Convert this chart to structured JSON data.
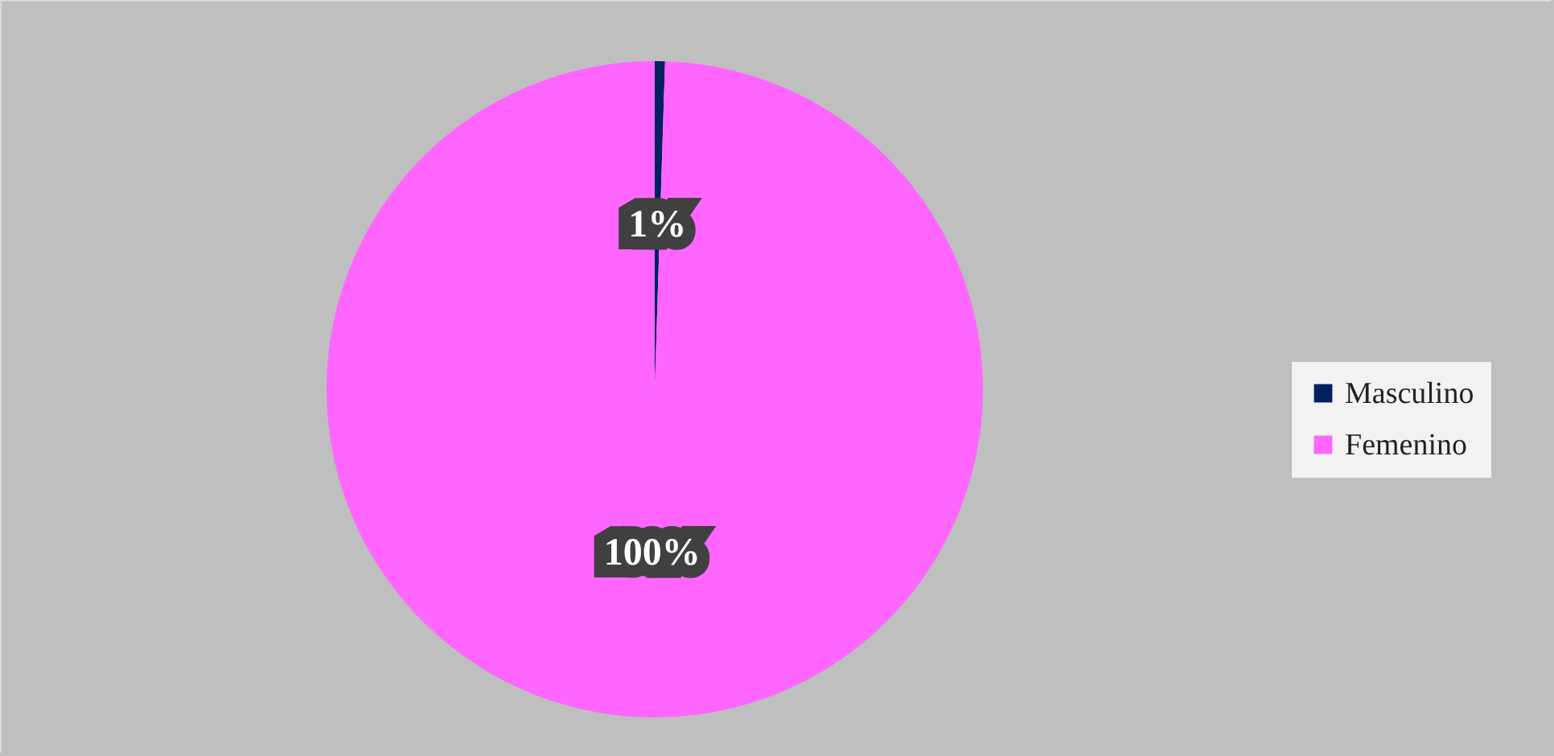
{
  "chart_data": {
    "type": "pie",
    "categories": [
      "Masculino",
      "Femenino"
    ],
    "values": [
      0.5,
      99.5
    ],
    "colors": [
      "#002060",
      "#ff66ff"
    ],
    "value_labels": [
      "1%",
      "100%"
    ],
    "legend": "right"
  }
}
